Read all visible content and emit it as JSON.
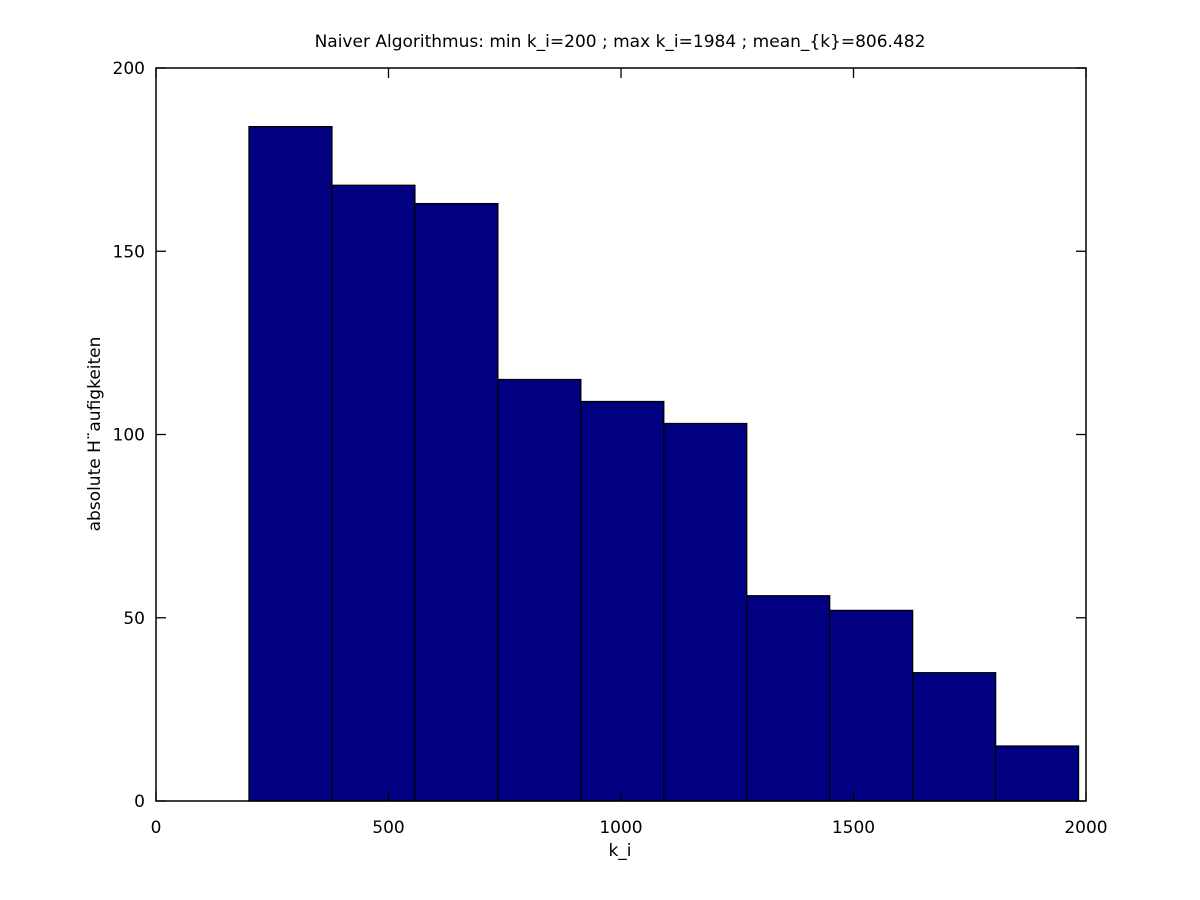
{
  "chart_data": {
    "type": "bar",
    "title": "Naiver Algorithmus: min k_i=200 ; max k_i=1984 ; mean_{k}=806.482",
    "xlabel": "k_i",
    "ylabel": "absolute H¨aufigkeiten",
    "xlim": [
      0,
      2000
    ],
    "ylim": [
      0,
      200
    ],
    "xticks": [
      0,
      500,
      1000,
      1500,
      2000
    ],
    "yticks": [
      0,
      50,
      100,
      150,
      200
    ],
    "grid": false,
    "legend": "none",
    "bar_color": "#000080",
    "bins": [
      {
        "x0": 200.0,
        "x1": 378.4,
        "value": 184
      },
      {
        "x0": 378.4,
        "x1": 556.8,
        "value": 168
      },
      {
        "x0": 556.8,
        "x1": 735.2,
        "value": 163
      },
      {
        "x0": 735.2,
        "x1": 913.6,
        "value": 115
      },
      {
        "x0": 913.6,
        "x1": 1092.0,
        "value": 109
      },
      {
        "x0": 1092.0,
        "x1": 1270.4,
        "value": 103
      },
      {
        "x0": 1270.4,
        "x1": 1448.8,
        "value": 56
      },
      {
        "x0": 1448.8,
        "x1": 1627.2,
        "value": 52
      },
      {
        "x0": 1627.2,
        "x1": 1805.6,
        "value": 35
      },
      {
        "x0": 1805.6,
        "x1": 1984.0,
        "value": 15
      }
    ]
  }
}
